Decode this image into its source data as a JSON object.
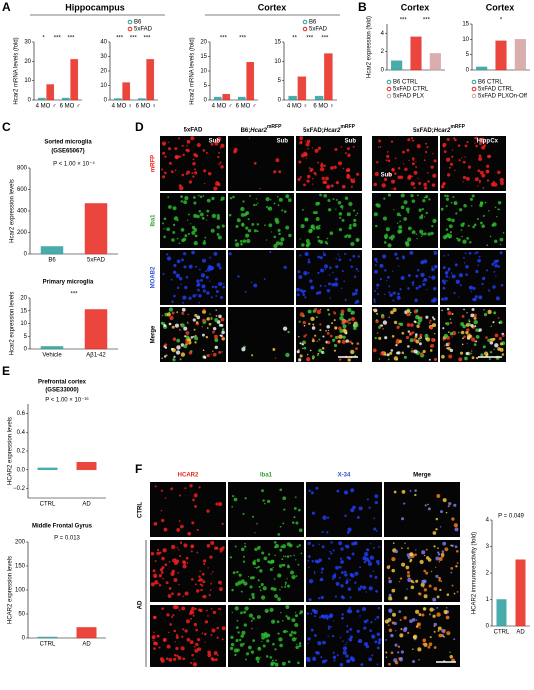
{
  "panels": [
    {
      "letter": "A",
      "titles": [
        "Hippocampus",
        "Cortex"
      ],
      "legend": [
        {
          "name": "B6",
          "color": "#2a9d9d"
        },
        {
          "name": "5xFAD",
          "color": "#e8261d"
        }
      ],
      "ylabel": "Hcar2 mRNA levels (fold)",
      "charts": [
        {
          "categories": [
            "4 MO ♂",
            "6 MO ♂"
          ],
          "ylim": [
            0,
            30
          ],
          "yticks": [
            0,
            10,
            20,
            30
          ],
          "series": [
            {
              "values": [
                1,
                1
              ]
            },
            {
              "values": [
                8,
                21
              ]
            }
          ],
          "marks": [
            "*",
            "***",
            "***"
          ]
        },
        {
          "categories": [
            "4 MO ♀",
            "6 MO ♀"
          ],
          "ylim": [
            0,
            40
          ],
          "yticks": [
            0,
            10,
            20,
            30,
            40
          ],
          "series": [
            {
              "values": [
                1,
                1
              ]
            },
            {
              "values": [
                12,
                28
              ]
            }
          ],
          "marks": [
            "***",
            "***",
            "***"
          ]
        },
        {
          "categories": [
            "4 MO ♂",
            "6 MO ♂"
          ],
          "ylim": [
            0,
            20
          ],
          "yticks": [
            0,
            5,
            10,
            15,
            20
          ],
          "series": [
            {
              "values": [
                1,
                1
              ]
            },
            {
              "values": [
                2,
                13
              ]
            }
          ],
          "marks": [
            "***",
            "***"
          ]
        },
        {
          "categories": [
            "4 MO ♀",
            "6 MO ♀"
          ],
          "ylim": [
            0,
            15
          ],
          "yticks": [
            0,
            5,
            10,
            15
          ],
          "series": [
            {
              "values": [
                1,
                1
              ]
            },
            {
              "values": [
                6,
                12
              ]
            }
          ],
          "marks": [
            "**",
            "***",
            "***"
          ]
        }
      ]
    },
    {
      "letter": "B",
      "titles": [
        "Cortex",
        "Cortex"
      ],
      "ylabel": "Hcar2 expression (fold)",
      "charts": [
        {
          "legend": [
            {
              "name": "B6 CTRL",
              "color": "#2a9d9d"
            },
            {
              "name": "5xFAD CTRL",
              "color": "#e8261d"
            },
            {
              "name": "5xFAD PLX",
              "color": "#d4a0a0"
            }
          ],
          "ylim": [
            0,
            5
          ],
          "yticks": [
            0,
            2,
            4
          ],
          "series": [
            {
              "values": [
                1
              ]
            },
            {
              "values": [
                3.6
              ]
            },
            {
              "values": [
                1.8
              ]
            }
          ],
          "marks": [
            "***",
            "***"
          ]
        },
        {
          "legend": [
            {
              "name": "B6 CTRL",
              "color": "#2a9d9d"
            },
            {
              "name": "5xFAD CTRL",
              "color": "#e8261d"
            },
            {
              "name": "5xFAD PLXOn-Off",
              "color": "#d4a0a0"
            }
          ],
          "ylim": [
            0,
            15
          ],
          "yticks": [
            0,
            5,
            10,
            15
          ],
          "series": [
            {
              "values": [
                1
              ]
            },
            {
              "values": [
                9.5
              ]
            },
            {
              "values": [
                10
              ]
            }
          ],
          "marks": [
            "*"
          ]
        }
      ]
    },
    {
      "letter": "C",
      "ylabel": "Hcar2 expression levels",
      "charts": [
        {
          "title": "Sorted microglia",
          "subtitle": "(GSE65067)",
          "categories": [
            "B6",
            "5xFAD"
          ],
          "ylim": [
            0,
            800
          ],
          "yticks": [
            0,
            200,
            400,
            600,
            800
          ],
          "colors": [
            "#2a9d9d",
            "#e8261d"
          ],
          "series": [
            {
              "values": [
                70,
                470
              ]
            }
          ],
          "marks": [
            "P < 1.00 × 10⁻⁴"
          ]
        },
        {
          "title": "Primary microglia",
          "categories": [
            "Vehicle",
            "Aβ1-42"
          ],
          "ylim": [
            0,
            20
          ],
          "yticks": [
            0,
            5,
            10,
            15,
            20
          ],
          "colors": [
            "#2a9d9d",
            "#e8261d"
          ],
          "series": [
            {
              "values": [
                1,
                15.5
              ]
            }
          ],
          "marks": [
            "***"
          ]
        }
      ]
    },
    {
      "letter": "D",
      "columns": [
        "5xFAD",
        "B6;Hcar2mRFP",
        "5xFAD;Hcar2mRFP",
        "5xFAD;Hcar2mRFP"
      ],
      "rows": [
        "mRFP",
        "Iba1",
        "MOAB2",
        "Merge"
      ],
      "regions": [
        "Sub",
        "Sub",
        "Sub",
        "Hipp",
        "Cx",
        "Sub"
      ]
    },
    {
      "letter": "E",
      "ylabel": "HCAR2 expression levels",
      "charts": [
        {
          "title": "Prefrontal cortex",
          "subtitle": "(GSE33000)",
          "categories": [
            "CTRL",
            "AD"
          ],
          "ylim": [
            -0.3,
            0.7
          ],
          "yticks": [
            {
              "value": -0.2,
              "label": "−0.2"
            },
            {
              "value": 0,
              "label": "0.0"
            },
            {
              "value": 0.2,
              "label": "0.2"
            },
            {
              "value": 0.4,
              "label": "0.4"
            },
            {
              "value": 0.6,
              "label": "0.6"
            }
          ],
          "colors": [
            "#2a9d9d",
            "#e8261d"
          ],
          "series": [
            {
              "values": [
                0.02,
                0.08
              ]
            }
          ],
          "marks": [
            "P < 1.00 × 10⁻¹⁶"
          ]
        },
        {
          "title": "Middle Frontal Gyrus",
          "categories": [
            "CTRL",
            "AD"
          ],
          "ylim": [
            0,
            200
          ],
          "yticks": [
            0,
            50,
            100,
            150,
            200
          ],
          "colors": [
            "#2a9d9d",
            "#e8261d"
          ],
          "series": [
            {
              "values": [
                2,
                22
              ]
            }
          ],
          "marks": [
            "P = 0.013"
          ]
        }
      ]
    },
    {
      "letter": "F",
      "columns": [
        "HCAR2",
        "Iba1",
        "X-34",
        "Merge"
      ],
      "rows": [
        "CTRL",
        "AD"
      ],
      "ylabel": "HCAR2 immunoreactivity (fold)",
      "charts": [
        {
          "categories": [
            "CTRL",
            "AD"
          ],
          "ylim": [
            0,
            4
          ],
          "yticks": [
            0,
            1,
            2,
            3,
            4
          ],
          "colors": [
            "#2a9d9d",
            "#e8261d"
          ],
          "series": [
            {
              "values": [
                1,
                2.5
              ]
            }
          ],
          "marks": [
            "P = 0.049"
          ]
        }
      ]
    }
  ]
}
